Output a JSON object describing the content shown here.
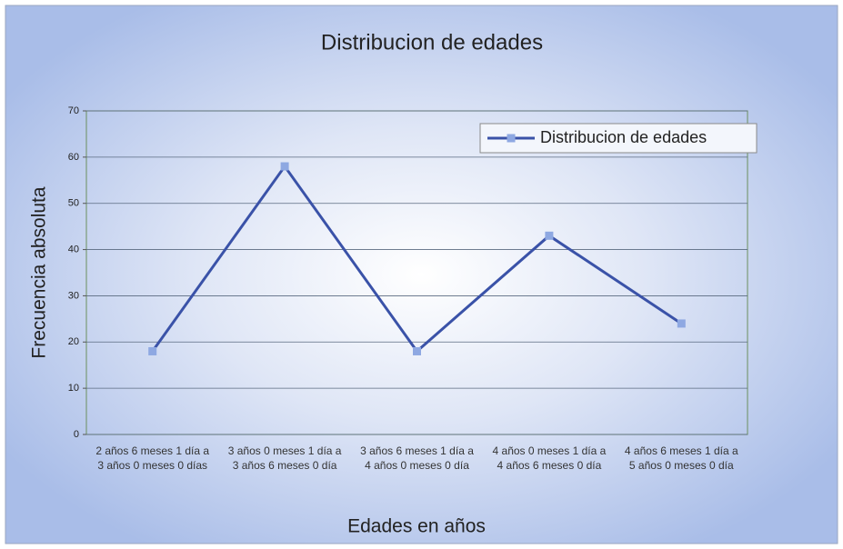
{
  "chart_data": {
    "type": "line",
    "title": "Distribucion de edades",
    "x_label": "Edades en años",
    "y_label": "Frecuencia absoluta",
    "categories": [
      "2 años 6 meses 1 día a 3 años 0 meses 0 días",
      "3 años 0 meses 1 día a 3 años 6 meses 0 día",
      "3 años 6 meses 1 día a 4 años 0 meses 0 día",
      "4 años 0 meses 1 día a 4 años 6 meses 0 día",
      "4 años 6 meses 1 día a 5 años 0 meses 0 día"
    ],
    "series": [
      {
        "name": "Distribucion de edades",
        "color": "#3a52a8",
        "marker_color": "#8ea8e2",
        "values": [
          18,
          58,
          18,
          43,
          24
        ]
      }
    ],
    "ylim": [
      0,
      70
    ],
    "yticks": [
      0,
      10,
      20,
      30,
      40,
      50,
      60,
      70
    ],
    "grid": true,
    "legend": "top-right"
  }
}
